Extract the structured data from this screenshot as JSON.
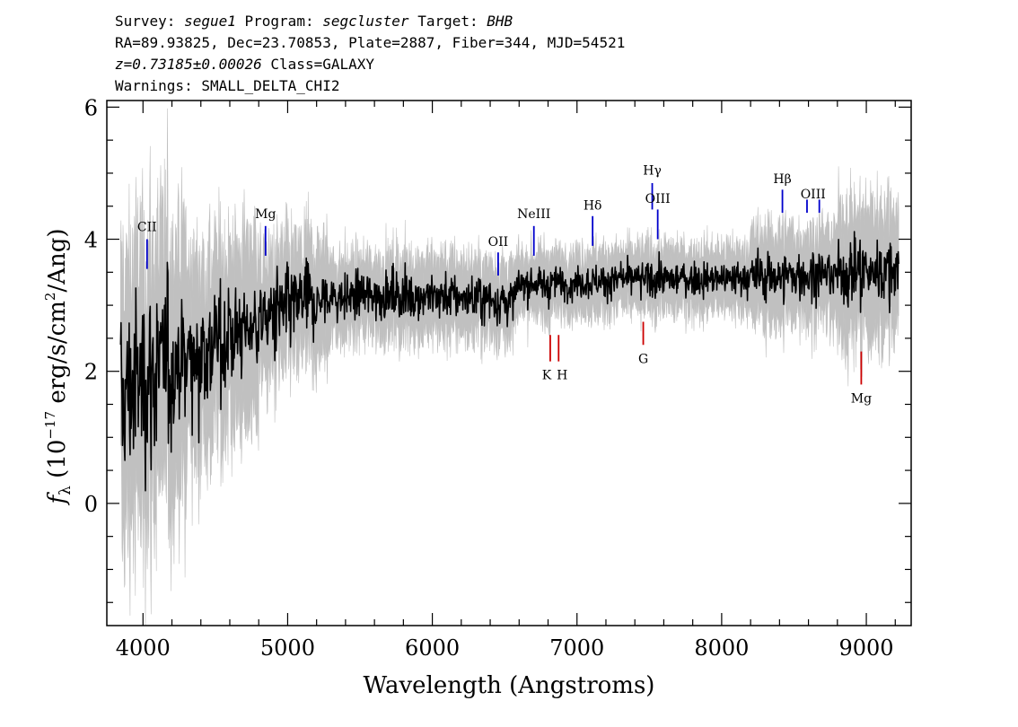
{
  "header": {
    "survey_label": "Survey:",
    "survey": "segue1",
    "program_label": "Program:",
    "program": "segcluster",
    "target_label": "Target:",
    "target": "BHB",
    "line2": "RA=89.93825, Dec=23.70853, Plate=2887, Fiber=344, MJD=54521",
    "redshift": "z=0.73185±0.00026",
    "class_text": "Class=GALAXY",
    "warnings": "Warnings: SMALL_DELTA_CHI2"
  },
  "chart_data": {
    "type": "line",
    "xlabel": "Wavelength (Angstroms)",
    "ylabel_parts": {
      "f": "f",
      "sub": "λ",
      "pre": " (10",
      "exp1": "−17",
      "mid": " erg/s/cm",
      "exp2": "2",
      "post": "/Ang)"
    },
    "xlim": [
      3750,
      9310
    ],
    "ylim": [
      -1.85,
      6.1
    ],
    "x_ticks": [
      4000,
      5000,
      6000,
      7000,
      8000,
      9000
    ],
    "y_ticks": [
      0,
      2,
      4,
      6
    ],
    "grid": false,
    "colors": {
      "flux": "#000000",
      "error_band": "#c0c0c0",
      "emission": "#0000cc",
      "absorption": "#cc0000"
    },
    "continuum_knots": {
      "x": [
        3850,
        3900,
        4000,
        4200,
        4500,
        4800,
        5000,
        5300,
        5600,
        6000,
        6300,
        6550,
        6600,
        7000,
        7500,
        8000,
        8500,
        9000,
        9200
      ],
      "y": [
        1.5,
        1.7,
        1.9,
        2.1,
        2.4,
        2.75,
        2.95,
        3.1,
        3.15,
        3.15,
        3.1,
        3.05,
        3.3,
        3.35,
        3.4,
        3.4,
        3.45,
        3.5,
        3.55
      ]
    },
    "emission_lines": [
      {
        "label": "CII",
        "x": 4028
      },
      {
        "label": "Mg",
        "x": 4847
      },
      {
        "label": "OII",
        "x": 6455
      },
      {
        "label": "NeIII",
        "x": 6702
      },
      {
        "label": "Hδ",
        "x": 7108
      },
      {
        "label": "Hγ",
        "x": 7520
      },
      {
        "label": "OIII",
        "x": 7558
      },
      {
        "label": "Hβ",
        "x": 8420
      },
      {
        "label": "OIII",
        "x": 8590
      },
      {
        "label": "OIII",
        "x": 8675
      }
    ],
    "absorption_lines": [
      {
        "label": "K",
        "x": 6815
      },
      {
        "label": "H",
        "x": 6873
      },
      {
        "label": "G",
        "x": 7458
      },
      {
        "label": "Mg",
        "x": 8965
      }
    ]
  }
}
